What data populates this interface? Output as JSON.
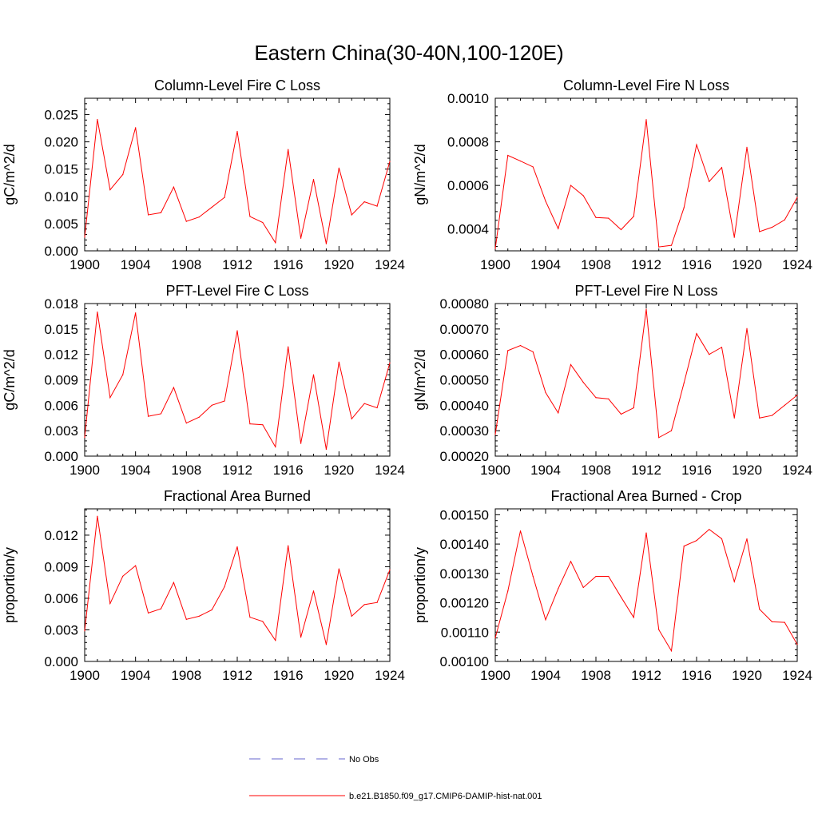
{
  "page_title": "Eastern China(30-40N,100-120E)",
  "legend": {
    "items": [
      {
        "label": "No Obs",
        "color": "#6666cc",
        "style": "dashed"
      },
      {
        "label": "b.e21.B1850.f09_g17.CMIP6-DAMIP-hist-nat.001",
        "color": "#ff0000",
        "style": "solid"
      }
    ]
  },
  "chart_data": [
    {
      "type": "line",
      "title": "Column-Level Fire C Loss",
      "ylabel": "gC/m^2/d",
      "xlim": [
        1900,
        1924
      ],
      "ylim": [
        0,
        0.028
      ],
      "xticks": [
        1900,
        1904,
        1908,
        1912,
        1916,
        1920,
        1924
      ],
      "yticks": [
        0,
        0.005,
        0.01,
        0.015,
        0.02,
        0.025
      ],
      "ytick_labels": [
        "0.000",
        "0.005",
        "0.010",
        "0.015",
        "0.020",
        "0.025"
      ],
      "x": [
        1900,
        1901,
        1902,
        1903,
        1904,
        1905,
        1906,
        1907,
        1908,
        1909,
        1910,
        1911,
        1912,
        1913,
        1914,
        1915,
        1916,
        1917,
        1918,
        1919,
        1920,
        1921,
        1922,
        1923,
        1924
      ],
      "series": [
        {
          "color": "#ff0000",
          "values": [
            0.0025,
            0.0241,
            0.0112,
            0.014,
            0.0226,
            0.0066,
            0.007,
            0.0117,
            0.0054,
            0.0062,
            0.008,
            0.0098,
            0.0219,
            0.0063,
            0.0052,
            0.0015,
            0.0186,
            0.0023,
            0.0131,
            0.0013,
            0.0152,
            0.0066,
            0.009,
            0.0082,
            0.0164
          ]
        }
      ]
    },
    {
      "type": "line",
      "title": "Column-Level Fire N Loss",
      "ylabel": "gN/m^2/d",
      "xlim": [
        1900,
        1924
      ],
      "ylim": [
        0.0003,
        0.001
      ],
      "xticks": [
        1900,
        1904,
        1908,
        1912,
        1916,
        1920,
        1924
      ],
      "yticks": [
        0.0004,
        0.0006,
        0.0008,
        0.001
      ],
      "ytick_labels": [
        "0.0004",
        "0.0006",
        "0.0008",
        "0.0010"
      ],
      "x": [
        1900,
        1901,
        1902,
        1903,
        1904,
        1905,
        1906,
        1907,
        1908,
        1909,
        1910,
        1911,
        1912,
        1913,
        1914,
        1915,
        1916,
        1917,
        1918,
        1919,
        1920,
        1921,
        1922,
        1923,
        1924
      ],
      "series": [
        {
          "color": "#ff0000",
          "values": [
            0.00031,
            0.000738,
            0.000712,
            0.000685,
            0.000528,
            0.000402,
            0.0006,
            0.000553,
            0.000453,
            0.00045,
            0.000397,
            0.000458,
            0.000902,
            0.000318,
            0.000325,
            0.000498,
            0.000787,
            0.000618,
            0.000682,
            0.000362,
            0.000775,
            0.000388,
            0.000408,
            0.000442,
            0.000545
          ]
        }
      ]
    },
    {
      "type": "line",
      "title": "PFT-Level Fire C Loss",
      "ylabel": "gC/m^2/d",
      "xlim": [
        1900,
        1924
      ],
      "ylim": [
        0,
        0.018
      ],
      "xticks": [
        1900,
        1904,
        1908,
        1912,
        1916,
        1920,
        1924
      ],
      "yticks": [
        0,
        0.003,
        0.006,
        0.009,
        0.012,
        0.015,
        0.018
      ],
      "ytick_labels": [
        "0.000",
        "0.003",
        "0.006",
        "0.009",
        "0.012",
        "0.015",
        "0.018"
      ],
      "x": [
        1900,
        1901,
        1902,
        1903,
        1904,
        1905,
        1906,
        1907,
        1908,
        1909,
        1910,
        1911,
        1912,
        1913,
        1914,
        1915,
        1916,
        1917,
        1918,
        1919,
        1920,
        1921,
        1922,
        1923,
        1924
      ],
      "series": [
        {
          "color": "#ff0000",
          "values": [
            0.0022,
            0.017,
            0.0069,
            0.0096,
            0.0169,
            0.0047,
            0.005,
            0.0081,
            0.0039,
            0.0046,
            0.006,
            0.0065,
            0.0148,
            0.0038,
            0.0037,
            0.0011,
            0.0129,
            0.0015,
            0.0096,
            0.0008,
            0.0111,
            0.0044,
            0.0062,
            0.0057,
            0.011
          ]
        }
      ]
    },
    {
      "type": "line",
      "title": "PFT-Level Fire N Loss",
      "ylabel": "gN/m^2/d",
      "xlim": [
        1900,
        1924
      ],
      "ylim": [
        0.0002,
        0.0008
      ],
      "xticks": [
        1900,
        1904,
        1908,
        1912,
        1916,
        1920,
        1924
      ],
      "yticks": [
        0.0002,
        0.0003,
        0.0004,
        0.0005,
        0.0006,
        0.0007,
        0.0008
      ],
      "ytick_labels": [
        "0.00020",
        "0.00030",
        "0.00040",
        "0.00050",
        "0.00060",
        "0.00070",
        "0.00080"
      ],
      "x": [
        1900,
        1901,
        1902,
        1903,
        1904,
        1905,
        1906,
        1907,
        1908,
        1909,
        1910,
        1911,
        1912,
        1913,
        1914,
        1915,
        1916,
        1917,
        1918,
        1919,
        1920,
        1921,
        1922,
        1923,
        1924
      ],
      "series": [
        {
          "color": "#ff0000",
          "values": [
            0.000285,
            0.000615,
            0.000635,
            0.00061,
            0.00045,
            0.00037,
            0.00056,
            0.00049,
            0.00043,
            0.000425,
            0.000365,
            0.00039,
            0.000778,
            0.000273,
            0.0003,
            0.000488,
            0.000682,
            0.0006,
            0.000628,
            0.00035,
            0.000702,
            0.00035,
            0.00036,
            0.0004,
            0.00044
          ]
        }
      ]
    },
    {
      "type": "line",
      "title": "Fractional Area Burned",
      "ylabel": "proportion/y",
      "xlim": [
        1900,
        1924
      ],
      "ylim": [
        0,
        0.0145
      ],
      "xticks": [
        1900,
        1904,
        1908,
        1912,
        1916,
        1920,
        1924
      ],
      "yticks": [
        0,
        0.003,
        0.006,
        0.009,
        0.012
      ],
      "ytick_labels": [
        "0.000",
        "0.003",
        "0.006",
        "0.009",
        "0.012"
      ],
      "x": [
        1900,
        1901,
        1902,
        1903,
        1904,
        1905,
        1906,
        1907,
        1908,
        1909,
        1910,
        1911,
        1912,
        1913,
        1914,
        1915,
        1916,
        1917,
        1918,
        1919,
        1920,
        1921,
        1922,
        1923,
        1924
      ],
      "series": [
        {
          "color": "#ff0000",
          "values": [
            0.0029,
            0.0138,
            0.0055,
            0.0081,
            0.0091,
            0.0046,
            0.005,
            0.0075,
            0.004,
            0.0043,
            0.0049,
            0.0071,
            0.0109,
            0.0042,
            0.0038,
            0.002,
            0.011,
            0.0023,
            0.0067,
            0.0016,
            0.0088,
            0.0043,
            0.0054,
            0.0056,
            0.0087
          ]
        }
      ]
    },
    {
      "type": "line",
      "title": "Fractional Area Burned - Crop",
      "ylabel": "proportion/y",
      "xlim": [
        1900,
        1924
      ],
      "ylim": [
        0.001,
        0.00152
      ],
      "xticks": [
        1900,
        1904,
        1908,
        1912,
        1916,
        1920,
        1924
      ],
      "yticks": [
        0.001,
        0.0011,
        0.0012,
        0.0013,
        0.0014,
        0.0015
      ],
      "ytick_labels": [
        "0.00100",
        "0.00110",
        "0.00120",
        "0.00130",
        "0.00140",
        "0.00150"
      ],
      "x": [
        1900,
        1901,
        1902,
        1903,
        1904,
        1905,
        1906,
        1907,
        1908,
        1909,
        1910,
        1911,
        1912,
        1913,
        1914,
        1915,
        1916,
        1917,
        1918,
        1919,
        1920,
        1921,
        1922,
        1923,
        1924
      ],
      "series": [
        {
          "color": "#ff0000",
          "values": [
            0.00108,
            0.00124,
            0.001445,
            0.00129,
            0.001142,
            0.001248,
            0.001341,
            0.001252,
            0.00129,
            0.00129,
            0.001219,
            0.00115,
            0.001438,
            0.001108,
            0.001036,
            0.001393,
            0.001412,
            0.00145,
            0.001418,
            0.001272,
            0.001418,
            0.001178,
            0.001135,
            0.001133,
            0.001058
          ]
        }
      ]
    }
  ]
}
